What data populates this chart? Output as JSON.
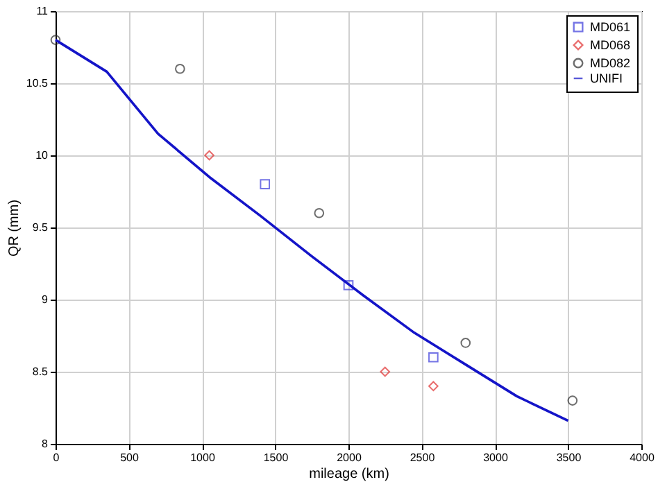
{
  "chart_data": {
    "type": "scatter",
    "xlabel": "mileage (km)",
    "ylabel": "QR (mm)",
    "xlim": [
      0,
      4000
    ],
    "xticks": [
      0,
      500,
      1000,
      1500,
      2000,
      2500,
      3000,
      3500,
      4000
    ],
    "ylim": [
      8,
      11
    ],
    "yticks": [
      8,
      8.5,
      9,
      9.5,
      10,
      10.5,
      11
    ],
    "grid": true,
    "legend": "top right",
    "series": [
      {
        "name": "MD061",
        "marker": "square",
        "color": "#3b3bdb",
        "x": [
          1430,
          2000,
          2580
        ],
        "values": [
          9.8,
          9.1,
          8.6
        ]
      },
      {
        "name": "MD068",
        "marker": "diamond",
        "color": "#e03030",
        "x": [
          1050,
          2250,
          2580
        ],
        "values": [
          10.0,
          8.5,
          8.4
        ]
      },
      {
        "name": "MD082",
        "marker": "circle",
        "color": "#303030",
        "x": [
          0,
          850,
          1800,
          2800,
          3530
        ],
        "values": [
          10.8,
          10.6,
          9.6,
          8.7,
          8.3
        ]
      },
      {
        "name": "UNIFI",
        "type": "line",
        "marker": "none",
        "line_style": "solid",
        "color": "#1414c8",
        "x": [
          0,
          350,
          700,
          1050,
          1400,
          1750,
          2100,
          2450,
          2800,
          3150,
          3500
        ],
        "values": [
          10.8,
          10.58,
          10.15,
          9.85,
          9.58,
          9.3,
          9.03,
          8.77,
          8.55,
          8.33,
          8.16
        ]
      }
    ]
  }
}
